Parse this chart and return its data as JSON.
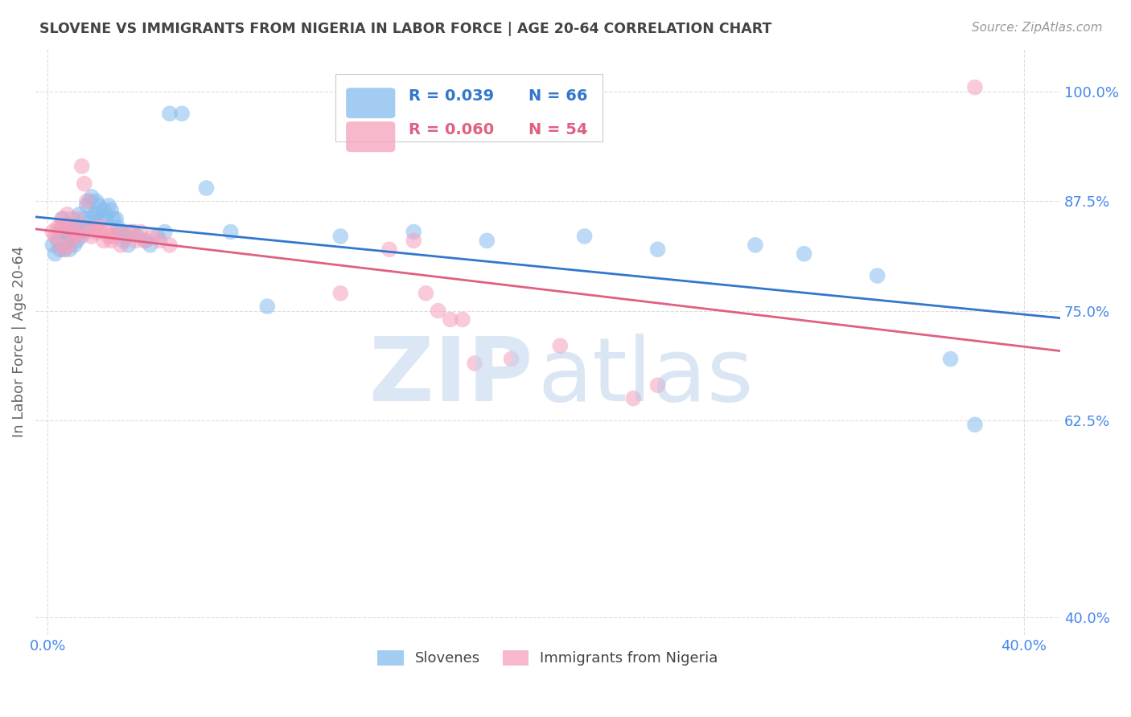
{
  "title": "SLOVENE VS IMMIGRANTS FROM NIGERIA IN LABOR FORCE | AGE 20-64 CORRELATION CHART",
  "source": "Source: ZipAtlas.com",
  "ylabel": "In Labor Force | Age 20-64",
  "legend_bottom": [
    "Slovenes",
    "Immigrants from Nigeria"
  ],
  "blue_color": "#85bcee",
  "pink_color": "#f5a0bc",
  "blue_line_color": "#3377cc",
  "pink_line_color": "#e06080",
  "title_color": "#444444",
  "source_color": "#999999",
  "ylabel_color": "#666666",
  "y_tick_color": "#4488ee",
  "x_tick_color": "#4488ee",
  "grid_color": "#dddddd",
  "background_color": "#ffffff",
  "x_min": -0.005,
  "x_max": 0.415,
  "y_min": 0.38,
  "y_max": 1.05,
  "y_ticks": [
    0.4,
    0.625,
    0.75,
    0.875,
    1.0
  ],
  "y_tick_labels": [
    "40.0%",
    "62.5%",
    "75.0%",
    "87.5%",
    "100.0%"
  ],
  "x_ticks": [
    0.0,
    0.4
  ],
  "x_tick_labels": [
    "0.0%",
    "40.0%"
  ],
  "slovene_x": [
    0.002,
    0.003,
    0.004,
    0.005,
    0.005,
    0.006,
    0.006,
    0.007,
    0.007,
    0.008,
    0.008,
    0.009,
    0.009,
    0.01,
    0.01,
    0.011,
    0.011,
    0.012,
    0.012,
    0.013,
    0.013,
    0.014,
    0.015,
    0.015,
    0.016,
    0.016,
    0.017,
    0.018,
    0.018,
    0.019,
    0.02,
    0.02,
    0.021,
    0.022,
    0.023,
    0.024,
    0.025,
    0.026,
    0.027,
    0.028,
    0.029,
    0.03,
    0.031,
    0.032,
    0.033,
    0.035,
    0.037,
    0.04,
    0.042,
    0.045,
    0.048,
    0.05,
    0.055,
    0.065,
    0.075,
    0.09,
    0.12,
    0.15,
    0.18,
    0.22,
    0.25,
    0.29,
    0.31,
    0.34,
    0.37,
    0.38
  ],
  "slovene_y": [
    0.825,
    0.815,
    0.83,
    0.84,
    0.82,
    0.855,
    0.845,
    0.84,
    0.82,
    0.83,
    0.845,
    0.835,
    0.82,
    0.855,
    0.835,
    0.84,
    0.825,
    0.845,
    0.83,
    0.84,
    0.86,
    0.835,
    0.855,
    0.84,
    0.845,
    0.87,
    0.875,
    0.855,
    0.88,
    0.86,
    0.86,
    0.875,
    0.87,
    0.855,
    0.865,
    0.855,
    0.87,
    0.865,
    0.855,
    0.855,
    0.845,
    0.84,
    0.83,
    0.835,
    0.825,
    0.84,
    0.835,
    0.83,
    0.825,
    0.835,
    0.84,
    0.975,
    0.975,
    0.89,
    0.84,
    0.755,
    0.835,
    0.84,
    0.83,
    0.835,
    0.82,
    0.825,
    0.815,
    0.79,
    0.695,
    0.62
  ],
  "nigeria_x": [
    0.002,
    0.003,
    0.004,
    0.005,
    0.005,
    0.006,
    0.007,
    0.007,
    0.008,
    0.009,
    0.009,
    0.01,
    0.011,
    0.012,
    0.013,
    0.013,
    0.014,
    0.015,
    0.016,
    0.017,
    0.018,
    0.019,
    0.02,
    0.021,
    0.022,
    0.023,
    0.024,
    0.025,
    0.026,
    0.027,
    0.028,
    0.03,
    0.032,
    0.034,
    0.036,
    0.038,
    0.04,
    0.043,
    0.046,
    0.05,
    0.12,
    0.14,
    0.15,
    0.155,
    0.16,
    0.165,
    0.17,
    0.175,
    0.19,
    0.21,
    0.24,
    0.25,
    0.38
  ],
  "nigeria_y": [
    0.84,
    0.835,
    0.845,
    0.845,
    0.825,
    0.855,
    0.845,
    0.82,
    0.86,
    0.84,
    0.825,
    0.845,
    0.835,
    0.855,
    0.84,
    0.835,
    0.915,
    0.895,
    0.875,
    0.845,
    0.835,
    0.84,
    0.845,
    0.84,
    0.845,
    0.83,
    0.84,
    0.835,
    0.83,
    0.835,
    0.84,
    0.825,
    0.835,
    0.84,
    0.83,
    0.84,
    0.83,
    0.835,
    0.83,
    0.825,
    0.77,
    0.82,
    0.83,
    0.77,
    0.75,
    0.74,
    0.74,
    0.69,
    0.695,
    0.71,
    0.65,
    0.665,
    1.005
  ]
}
